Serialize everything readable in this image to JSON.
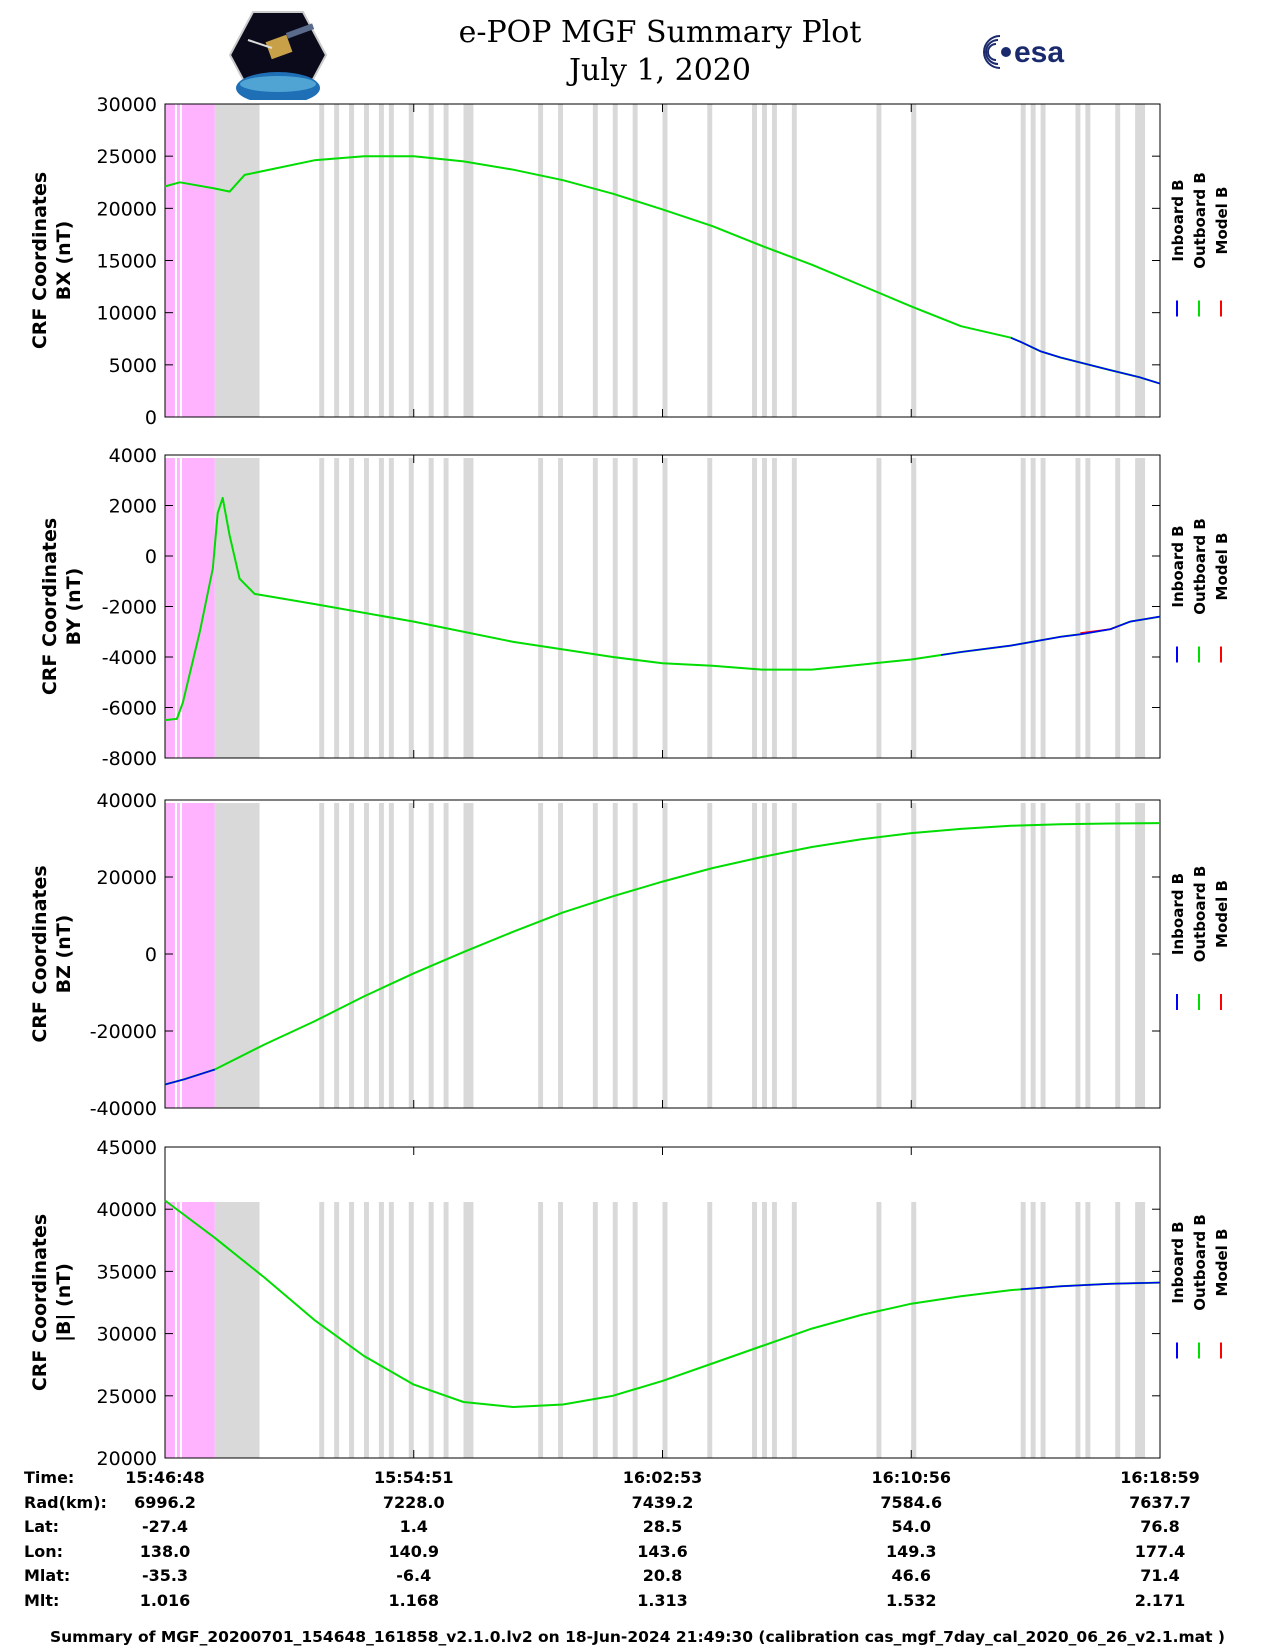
{
  "header": {
    "title": "e-POP MGF Summary Plot",
    "date": "July 1, 2020",
    "logo_left": "e-POP CASSIOPE",
    "logo_right": "esa"
  },
  "legend": {
    "entries": [
      {
        "label": "Inboard B",
        "color": "#0000ff"
      },
      {
        "label": "Outboard B",
        "color": "#00dd00"
      },
      {
        "label": "Model B",
        "color": "#ff0000"
      }
    ]
  },
  "chart_data": [
    {
      "type": "line",
      "id": "bx",
      "ylabel": [
        "CRF Coordinates",
        "BX (nT)"
      ],
      "ylim": [
        0,
        30000
      ],
      "yticks": [
        0,
        5000,
        10000,
        15000,
        20000,
        25000,
        30000
      ],
      "x_fraction": [
        0,
        0.015,
        0.05,
        0.065,
        0.08,
        0.15,
        0.2,
        0.25,
        0.3,
        0.35,
        0.4,
        0.45,
        0.5,
        0.55,
        0.6,
        0.65,
        0.7,
        0.75,
        0.8,
        0.85,
        0.86,
        0.88,
        0.9,
        0.95,
        0.98,
        1.0
      ],
      "series": [
        {
          "name": "Outboard B",
          "values": [
            22100,
            22500,
            21900,
            21600,
            23200,
            24600,
            25000,
            25000,
            24500,
            23700,
            22700,
            21400,
            19900,
            18300,
            16400,
            14600,
            12600,
            10600,
            8700,
            7600,
            7200,
            6300,
            5700,
            4500,
            3800,
            3200
          ]
        },
        {
          "name": "Inboard B",
          "values": [
            22100,
            22500,
            21900,
            21600,
            23200,
            24600,
            25000,
            25000,
            24500,
            23700,
            22700,
            21400,
            19900,
            18300,
            16400,
            14600,
            12600,
            10600,
            8700,
            7600,
            7200,
            6300,
            5700,
            4500,
            3800,
            3200
          ],
          "visible_from": 0.85
        }
      ]
    },
    {
      "type": "line",
      "id": "by",
      "ylabel": [
        "CRF Coordinates",
        "BY (nT)"
      ],
      "ylim": [
        -8000,
        4000
      ],
      "yticks": [
        -8000,
        -6000,
        -4000,
        -2000,
        0,
        2000,
        4000
      ],
      "x_fraction": [
        0,
        0.012,
        0.018,
        0.035,
        0.048,
        0.053,
        0.058,
        0.065,
        0.075,
        0.09,
        0.15,
        0.25,
        0.35,
        0.45,
        0.5,
        0.55,
        0.6,
        0.65,
        0.7,
        0.75,
        0.8,
        0.85,
        0.9,
        0.92,
        0.95,
        0.97,
        1.0
      ],
      "series": [
        {
          "name": "Outboard B",
          "values": [
            -6500,
            -6450,
            -5800,
            -3000,
            -500,
            1700,
            2300,
            800,
            -900,
            -1500,
            -1900,
            -2600,
            -3400,
            -4000,
            -4250,
            -4350,
            -4500,
            -4500,
            -4300,
            -4100,
            -3800,
            -3550,
            -3200,
            -3100,
            -2900,
            -2600,
            -2400
          ]
        },
        {
          "name": "Inboard B",
          "values": [
            -6500,
            -6450,
            -5800,
            -3000,
            -500,
            1700,
            2300,
            800,
            -900,
            -1500,
            -1900,
            -2600,
            -3400,
            -4000,
            -4250,
            -4350,
            -4500,
            -4500,
            -4300,
            -4100,
            -3800,
            -3550,
            -3200,
            -3100,
            -2900,
            -2600,
            -2400
          ],
          "visible_from": 0.78
        },
        {
          "name": "Model B",
          "values": [
            -6500,
            -6450,
            -5800,
            -3000,
            -500,
            1700,
            2300,
            800,
            -900,
            -1500,
            -1900,
            -2600,
            -3400,
            -4000,
            -4250,
            -4350,
            -4500,
            -4500,
            -4300,
            -4100,
            -3800,
            -3550,
            -3150,
            -3050,
            -2900,
            -2600,
            -2400
          ],
          "visible_from": 0.92,
          "visible_to": 0.96
        }
      ]
    },
    {
      "type": "line",
      "id": "bz",
      "ylabel": [
        "CRF Coordinates",
        "BZ (nT)"
      ],
      "ylim": [
        -40000,
        40000
      ],
      "yticks": [
        -40000,
        -20000,
        0,
        20000,
        40000
      ],
      "x_fraction": [
        0,
        0.02,
        0.05,
        0.1,
        0.15,
        0.2,
        0.25,
        0.3,
        0.35,
        0.4,
        0.45,
        0.5,
        0.55,
        0.6,
        0.65,
        0.7,
        0.75,
        0.8,
        0.85,
        0.9,
        0.95,
        1.0
      ],
      "series": [
        {
          "name": "Outboard B",
          "values": [
            -33900,
            -32500,
            -30000,
            -23500,
            -17500,
            -11000,
            -5000,
            500,
            5800,
            10800,
            15000,
            18800,
            22300,
            25200,
            27800,
            29800,
            31400,
            32500,
            33300,
            33700,
            33900,
            34000
          ]
        },
        {
          "name": "Inboard B",
          "values": [
            -33900,
            -32500,
            -30000,
            -23500,
            -17500,
            -11000,
            -5000,
            500,
            5800,
            10800,
            15000,
            18800,
            22300,
            25200,
            27800,
            29800,
            31400,
            32500,
            33300,
            33700,
            33900,
            34000
          ],
          "visible_to": 0.05
        }
      ]
    },
    {
      "type": "line",
      "id": "bmag",
      "ylabel": [
        "CRF Coordinates",
        "|B| (nT)"
      ],
      "ylim": [
        20000,
        45000
      ],
      "yticks": [
        20000,
        25000,
        30000,
        35000,
        40000,
        45000
      ],
      "x_fraction": [
        0,
        0.05,
        0.1,
        0.15,
        0.2,
        0.25,
        0.3,
        0.35,
        0.4,
        0.45,
        0.5,
        0.55,
        0.6,
        0.65,
        0.7,
        0.75,
        0.8,
        0.85,
        0.9,
        0.95,
        1.0
      ],
      "series": [
        {
          "name": "Outboard B",
          "values": [
            40700,
            37700,
            34500,
            31100,
            28200,
            25900,
            24500,
            24100,
            24300,
            25000,
            26200,
            27600,
            29000,
            30400,
            31500,
            32400,
            33000,
            33500,
            33800,
            34000,
            34100
          ]
        },
        {
          "name": "Inboard B",
          "values": [
            40700,
            37700,
            34500,
            31100,
            28200,
            25900,
            24500,
            24100,
            24300,
            25000,
            26200,
            27600,
            29000,
            30400,
            31500,
            32400,
            33000,
            33500,
            33800,
            34000,
            34100
          ],
          "visible_from": 0.86
        }
      ]
    }
  ],
  "shading": {
    "pink_color": "#ffb3ff",
    "gray_color": "#d9d9d9",
    "pink_span": [
      0.0,
      0.05
    ],
    "gray_main_span": [
      0.05,
      0.095
    ],
    "gray_stripes": [
      [
        0.155,
        0.16
      ],
      [
        0.17,
        0.175
      ],
      [
        0.185,
        0.19
      ],
      [
        0.2,
        0.205
      ],
      [
        0.215,
        0.22
      ],
      [
        0.225,
        0.23
      ],
      [
        0.245,
        0.25
      ],
      [
        0.265,
        0.27
      ],
      [
        0.28,
        0.285
      ],
      [
        0.3,
        0.31
      ],
      [
        0.375,
        0.38
      ],
      [
        0.395,
        0.4
      ],
      [
        0.43,
        0.435
      ],
      [
        0.45,
        0.455
      ],
      [
        0.47,
        0.475
      ],
      [
        0.5,
        0.505
      ],
      [
        0.545,
        0.55
      ],
      [
        0.59,
        0.595
      ],
      [
        0.6,
        0.605
      ],
      [
        0.61,
        0.615
      ],
      [
        0.63,
        0.635
      ],
      [
        0.715,
        0.72
      ],
      [
        0.75,
        0.755
      ],
      [
        0.86,
        0.865
      ],
      [
        0.87,
        0.875
      ],
      [
        0.88,
        0.885
      ],
      [
        0.915,
        0.92
      ],
      [
        0.925,
        0.93
      ],
      [
        0.955,
        0.96
      ],
      [
        0.975,
        0.985
      ]
    ]
  },
  "info": {
    "labels": [
      "Time:",
      "Rad(km):",
      "Lat:",
      "Lon:",
      "Mlat:",
      "Mlt:"
    ],
    "columns": [
      [
        "15:46:48",
        "6996.2",
        "-27.4",
        "138.0",
        "-35.3",
        "1.016"
      ],
      [
        "15:54:51",
        "7228.0",
        "1.4",
        "140.9",
        "-6.4",
        "1.168"
      ],
      [
        "16:02:53",
        "7439.2",
        "28.5",
        "143.6",
        "20.8",
        "1.313"
      ],
      [
        "16:10:56",
        "7584.6",
        "54.0",
        "149.3",
        "46.6",
        "1.532"
      ],
      [
        "16:18:59",
        "7637.7",
        "76.8",
        "177.4",
        "71.4",
        "2.171"
      ]
    ]
  },
  "footer": "Summary of MGF_20200701_154648_161858_v2.1.0.lv2 on 18-Jun-2024 21:49:30 (calibration cas_mgf_7day_cal_2020_06_26_v2.1.mat )"
}
